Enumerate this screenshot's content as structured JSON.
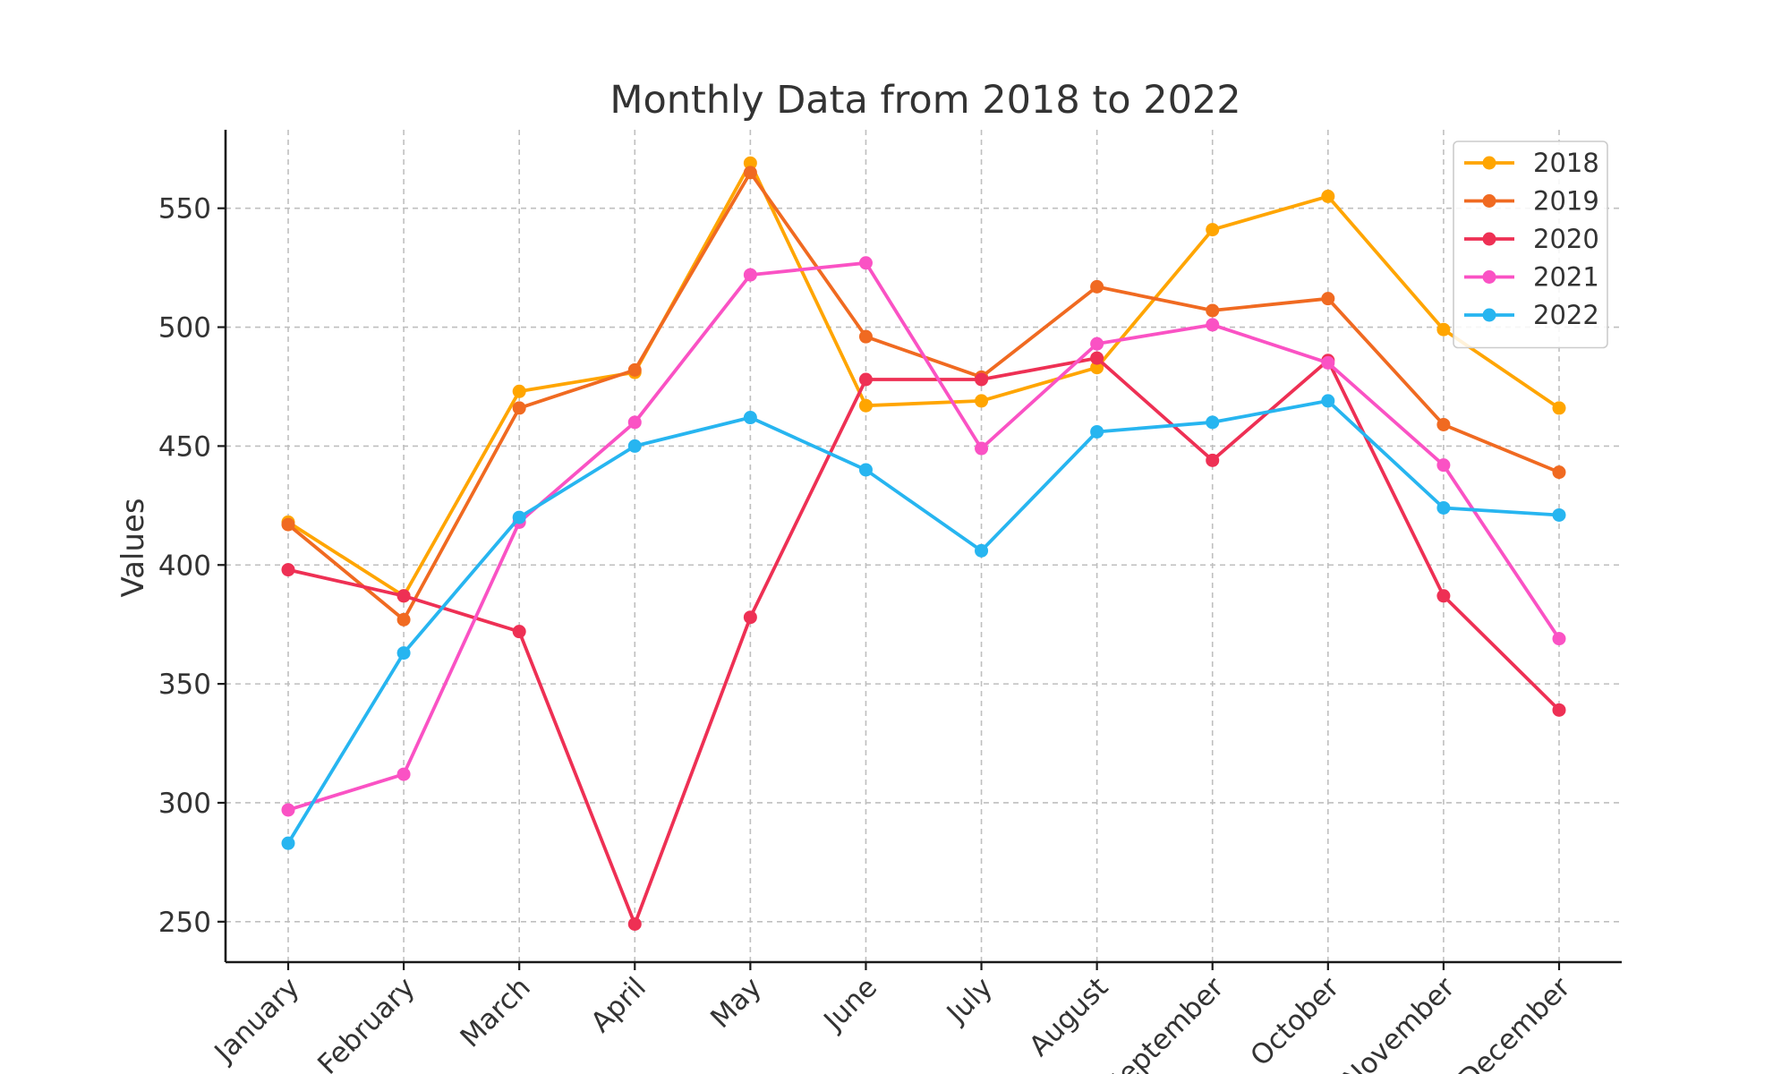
{
  "chart_data": {
    "type": "line",
    "title": "Monthly Data from 2018 to 2022",
    "xlabel": "",
    "ylabel": "Values",
    "categories": [
      "January",
      "February",
      "March",
      "April",
      "May",
      "June",
      "July",
      "August",
      "September",
      "October",
      "November",
      "December"
    ],
    "ylim": [
      233,
      583
    ],
    "yticks": [
      250,
      300,
      350,
      400,
      450,
      500,
      550
    ],
    "ytick_labels": [
      "250",
      "300",
      "350",
      "400",
      "450",
      "500",
      "550"
    ],
    "grid": true,
    "legend_position": "top-right",
    "series": [
      {
        "name": "2018",
        "color": "#FFA500",
        "values": [
          418,
          387,
          473,
          481,
          569,
          467,
          469,
          483,
          541,
          555,
          499,
          466
        ]
      },
      {
        "name": "2019",
        "color": "#F06A21",
        "values": [
          417,
          377,
          466,
          482,
          565,
          496,
          479,
          517,
          507,
          512,
          459,
          439
        ]
      },
      {
        "name": "2020",
        "color": "#EE3054",
        "values": [
          398,
          387,
          372,
          249,
          378,
          478,
          478,
          487,
          444,
          486,
          387,
          339
        ]
      },
      {
        "name": "2021",
        "color": "#FA52C4",
        "values": [
          297,
          312,
          418,
          460,
          522,
          527,
          449,
          493,
          501,
          485,
          442,
          369
        ]
      },
      {
        "name": "2022",
        "color": "#27B5F0",
        "values": [
          283,
          363,
          420,
          450,
          462,
          440,
          406,
          456,
          460,
          469,
          424,
          421
        ]
      }
    ]
  }
}
